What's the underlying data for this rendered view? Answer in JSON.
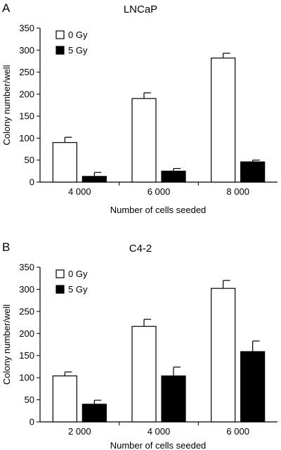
{
  "chart_data": [
    {
      "type": "bar",
      "panel_label": "A",
      "title": "LNCaP",
      "xlabel": "Number of cells seeded",
      "ylabel": "Colony number/well",
      "categories": [
        "4 000",
        "6 000",
        "8 000"
      ],
      "ylim": [
        0,
        350
      ],
      "yticks": [
        "0",
        "50",
        "100",
        "150",
        "200",
        "250",
        "300",
        "350"
      ],
      "legend_position": "top-left",
      "series": [
        {
          "name": "0 Gy",
          "color": "#ffffff",
          "values": [
            90,
            190,
            282
          ],
          "errors": [
            12,
            13,
            11
          ]
        },
        {
          "name": "5 Gy",
          "color": "#000000",
          "values": [
            13,
            25,
            46
          ],
          "errors": [
            9,
            6,
            4
          ]
        }
      ]
    },
    {
      "type": "bar",
      "panel_label": "B",
      "title": "C4-2",
      "xlabel": "Number of cells seeded",
      "ylabel": "Colony number/well",
      "categories": [
        "2 000",
        "4 000",
        "6 000"
      ],
      "ylim": [
        0,
        350
      ],
      "yticks": [
        "0",
        "50",
        "100",
        "150",
        "200",
        "250",
        "300",
        "350"
      ],
      "legend_position": "top-left",
      "series": [
        {
          "name": "0 Gy",
          "color": "#ffffff",
          "values": [
            104,
            216,
            302
          ],
          "errors": [
            9,
            16,
            18
          ]
        },
        {
          "name": "5 Gy",
          "color": "#000000",
          "values": [
            40,
            104,
            159
          ],
          "errors": [
            9,
            20,
            24
          ]
        }
      ]
    }
  ]
}
